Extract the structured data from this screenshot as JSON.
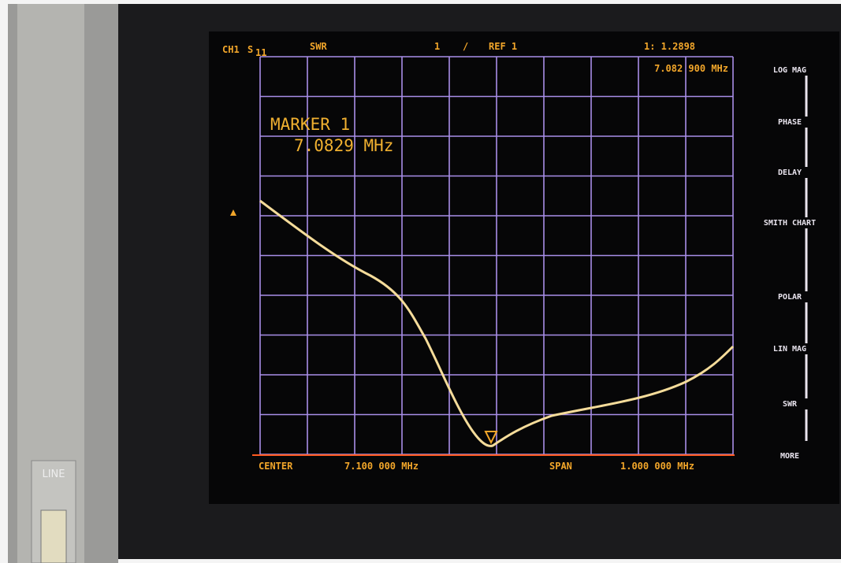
{
  "header": {
    "channel": "CH1",
    "parameter": "S",
    "parameter_sub": "11",
    "format": "SWR",
    "marker_number": "1",
    "scale": "/",
    "reference": "REF 1",
    "marker_readout": "1: 1.2898"
  },
  "marker_frequency": "7.082 900 MHz",
  "annotation": {
    "title": "MARKER 1",
    "frequency": "7.0829 MHz"
  },
  "footer": {
    "center_label": "CENTER",
    "center_value": "7.100 000 MHz",
    "span_label": "SPAN",
    "span_value": "1.000 000 MHz"
  },
  "softkeys": [
    "LOG MAG",
    "PHASE",
    "DELAY",
    "SMITH CHART",
    "POLAR",
    "LIN MAG",
    "SWR",
    "MORE"
  ],
  "panel": {
    "switch_label": "LINE"
  }
}
